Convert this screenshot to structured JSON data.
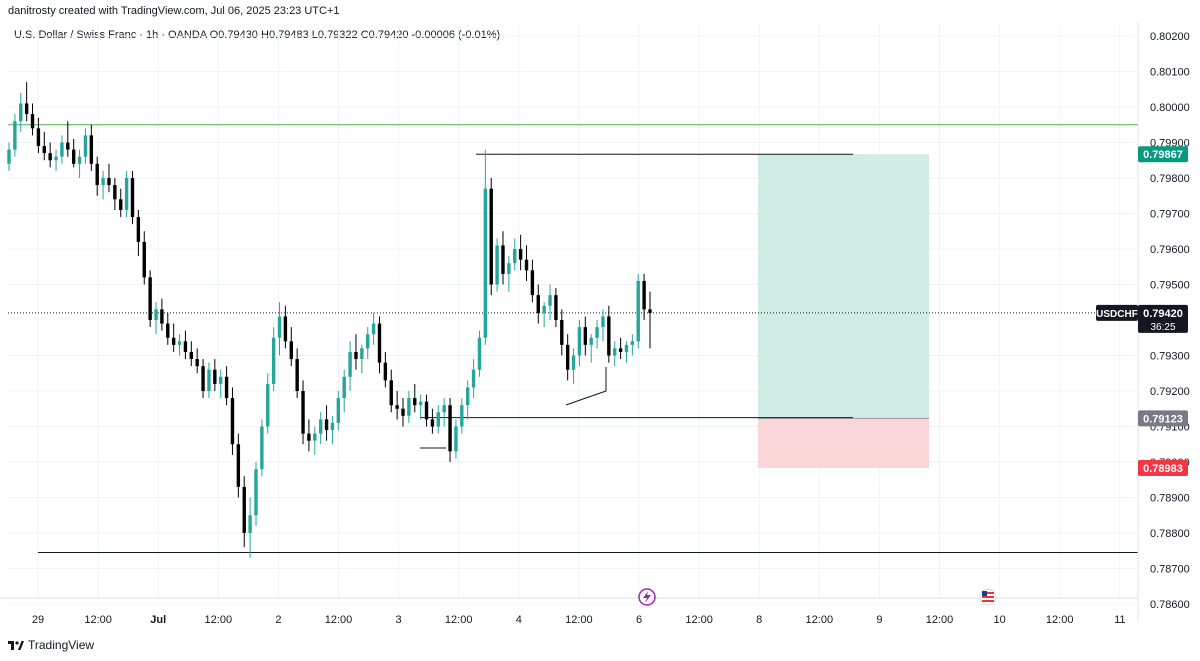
{
  "header": {
    "caption": "danitrosty created with TradingView.com, Jul 06, 2025 23:23 UTC+1",
    "symbol_name": "U.S. Dollar / Swiss Franc · 1h · OANDA",
    "open": "O0.79430",
    "high": "H0.79483",
    "low": "L0.79322",
    "close": "C0.79420",
    "change": "-0.00006 (-0.01%)"
  },
  "footer": {
    "brand": "TradingView"
  },
  "colors": {
    "up": "#26a69a",
    "down": "#000000",
    "profit_zone": "#cfece5",
    "loss_zone": "#fbd6d8",
    "target_label": "#089981",
    "entry_label": "#787b86",
    "stop_label": "#f23645",
    "price_label": "#131722",
    "resistance_line": "#4caf50"
  },
  "chart_data": {
    "type": "candlestick",
    "ylim": [
      0.7856,
      0.8024
    ],
    "y_ticks": [
      "0.80200",
      "0.80100",
      "0.80000",
      "0.79900",
      "0.79800",
      "0.79700",
      "0.79600",
      "0.79500",
      "0.79300",
      "0.79200",
      "0.79100",
      "0.79000",
      "0.78900",
      "0.78800",
      "0.78700",
      "0.78600"
    ],
    "y_tick_values": [
      0.802,
      0.801,
      0.8,
      0.799,
      0.798,
      0.797,
      0.796,
      0.795,
      0.793,
      0.792,
      0.791,
      0.79,
      0.789,
      0.788,
      0.787,
      0.786
    ],
    "x_ticks": [
      "29",
      "12:00",
      "Jul",
      "12:00",
      "2",
      "12:00",
      "3",
      "12:00",
      "4",
      "12:00",
      "6",
      "12:00",
      "8",
      "12:00",
      "9",
      "12:00",
      "10",
      "12:00",
      "11"
    ],
    "x_tick_bold": [
      false,
      false,
      true,
      false,
      false,
      false,
      false,
      false,
      false,
      false,
      false,
      false,
      false,
      false,
      false,
      false,
      false,
      false,
      false
    ],
    "current_price": {
      "symbol": "USDCHF",
      "price": "0.79420",
      "countdown": "36:25",
      "value": 0.7942
    },
    "position": {
      "target_label": "0.79867",
      "target": 0.79867,
      "entry_label": "0.79123",
      "entry": 0.79123,
      "stop_label": "0.78983",
      "stop": 0.78983
    },
    "horizontal_lines": [
      {
        "name": "resistance",
        "value": 0.7995,
        "color": "#4caf50"
      },
      {
        "name": "high-line",
        "value": 0.79867
      },
      {
        "name": "low-line",
        "value": 0.79125
      },
      {
        "name": "support",
        "value": 0.78745
      }
    ],
    "event_icons": [
      "lightning-event-icon",
      "us-flag-icon"
    ],
    "candles": [
      [
        0.7984,
        0.799,
        0.7982,
        0.7988
      ],
      [
        0.7988,
        0.7998,
        0.7986,
        0.7996
      ],
      [
        0.7996,
        0.8004,
        0.7993,
        0.8001
      ],
      [
        0.8001,
        0.8007,
        0.7996,
        0.7998
      ],
      [
        0.7998,
        0.8001,
        0.7992,
        0.7994
      ],
      [
        0.7994,
        0.7997,
        0.7987,
        0.7989
      ],
      [
        0.7989,
        0.7993,
        0.7985,
        0.7987
      ],
      [
        0.7987,
        0.799,
        0.7983,
        0.7985
      ],
      [
        0.7985,
        0.7988,
        0.7982,
        0.7986
      ],
      [
        0.7986,
        0.7992,
        0.7984,
        0.799
      ],
      [
        0.799,
        0.7996,
        0.7986,
        0.7988
      ],
      [
        0.7988,
        0.7991,
        0.7983,
        0.7984
      ],
      [
        0.7984,
        0.7988,
        0.798,
        0.7986
      ],
      [
        0.7986,
        0.7994,
        0.7984,
        0.7992
      ],
      [
        0.7992,
        0.7995,
        0.7982,
        0.7984
      ],
      [
        0.7984,
        0.7986,
        0.7975,
        0.7978
      ],
      [
        0.7978,
        0.7982,
        0.7974,
        0.798
      ],
      [
        0.798,
        0.7984,
        0.7976,
        0.7978
      ],
      [
        0.7978,
        0.798,
        0.7971,
        0.7974
      ],
      [
        0.7974,
        0.7977,
        0.7969,
        0.7971
      ],
      [
        0.7971,
        0.7982,
        0.7969,
        0.798
      ],
      [
        0.798,
        0.7982,
        0.7967,
        0.7969
      ],
      [
        0.7969,
        0.7971,
        0.7958,
        0.7962
      ],
      [
        0.7962,
        0.7965,
        0.795,
        0.7952
      ],
      [
        0.7952,
        0.7954,
        0.7938,
        0.794
      ],
      [
        0.794,
        0.7945,
        0.7936,
        0.7943
      ],
      [
        0.7943,
        0.7946,
        0.7937,
        0.7939
      ],
      [
        0.7939,
        0.7942,
        0.7933,
        0.7935
      ],
      [
        0.7935,
        0.7939,
        0.7931,
        0.7933
      ],
      [
        0.7933,
        0.7936,
        0.793,
        0.7934
      ],
      [
        0.7934,
        0.7937,
        0.7929,
        0.7931
      ],
      [
        0.7931,
        0.7934,
        0.7927,
        0.7929
      ],
      [
        0.7929,
        0.7932,
        0.7925,
        0.7927
      ],
      [
        0.7927,
        0.7929,
        0.7918,
        0.792
      ],
      [
        0.792,
        0.7928,
        0.7918,
        0.7926
      ],
      [
        0.7926,
        0.7929,
        0.792,
        0.7922
      ],
      [
        0.7922,
        0.7926,
        0.7918,
        0.7924
      ],
      [
        0.7924,
        0.7927,
        0.7916,
        0.7918
      ],
      [
        0.7918,
        0.7921,
        0.7902,
        0.7905
      ],
      [
        0.7905,
        0.7908,
        0.789,
        0.7893
      ],
      [
        0.7893,
        0.7896,
        0.7876,
        0.788
      ],
      [
        0.788,
        0.789,
        0.7873,
        0.7885
      ],
      [
        0.7885,
        0.79,
        0.7882,
        0.7898
      ],
      [
        0.7898,
        0.7912,
        0.7896,
        0.791
      ],
      [
        0.791,
        0.7925,
        0.7908,
        0.7922
      ],
      [
        0.7922,
        0.7938,
        0.792,
        0.7935
      ],
      [
        0.7935,
        0.7945,
        0.793,
        0.7941
      ],
      [
        0.7941,
        0.7944,
        0.7932,
        0.7934
      ],
      [
        0.7934,
        0.7938,
        0.7927,
        0.7929
      ],
      [
        0.7929,
        0.7932,
        0.7918,
        0.792
      ],
      [
        0.792,
        0.7923,
        0.7905,
        0.7908
      ],
      [
        0.7908,
        0.7912,
        0.7903,
        0.7906
      ],
      [
        0.7906,
        0.791,
        0.7902,
        0.7908
      ],
      [
        0.7908,
        0.7914,
        0.7905,
        0.7912
      ],
      [
        0.7912,
        0.7916,
        0.7906,
        0.7909
      ],
      [
        0.7909,
        0.7913,
        0.7905,
        0.7911
      ],
      [
        0.7911,
        0.792,
        0.7909,
        0.7918
      ],
      [
        0.7918,
        0.7926,
        0.7914,
        0.7924
      ],
      [
        0.7924,
        0.7934,
        0.792,
        0.7931
      ],
      [
        0.7931,
        0.7936,
        0.7926,
        0.7929
      ],
      [
        0.7929,
        0.7933,
        0.7925,
        0.7932
      ],
      [
        0.7932,
        0.7938,
        0.7929,
        0.7936
      ],
      [
        0.7936,
        0.7942,
        0.7933,
        0.7939
      ],
      [
        0.7939,
        0.7941,
        0.7925,
        0.7928
      ],
      [
        0.7928,
        0.7931,
        0.7921,
        0.7923
      ],
      [
        0.7923,
        0.7926,
        0.7914,
        0.7916
      ],
      [
        0.7916,
        0.792,
        0.7912,
        0.7915
      ],
      [
        0.7915,
        0.7918,
        0.791,
        0.7913
      ],
      [
        0.7913,
        0.792,
        0.7911,
        0.7918
      ],
      [
        0.7918,
        0.7922,
        0.7914,
        0.7916
      ],
      [
        0.7916,
        0.7919,
        0.7912,
        0.7917
      ],
      [
        0.7917,
        0.7919,
        0.791,
        0.7912
      ],
      [
        0.7912,
        0.7915,
        0.7908,
        0.791
      ],
      [
        0.791,
        0.7916,
        0.7908,
        0.7914
      ],
      [
        0.7914,
        0.7918,
        0.791,
        0.7916
      ],
      [
        0.7916,
        0.7918,
        0.79,
        0.7903
      ],
      [
        0.7903,
        0.7912,
        0.7901,
        0.791
      ],
      [
        0.791,
        0.7918,
        0.7908,
        0.7916
      ],
      [
        0.7916,
        0.7923,
        0.7912,
        0.7921
      ],
      [
        0.7921,
        0.7929,
        0.7918,
        0.7926
      ],
      [
        0.7926,
        0.7937,
        0.7924,
        0.7935
      ],
      [
        0.7935,
        0.7988,
        0.7933,
        0.7977
      ],
      [
        0.7977,
        0.798,
        0.7947,
        0.795
      ],
      [
        0.795,
        0.7963,
        0.7948,
        0.7961
      ],
      [
        0.7961,
        0.7965,
        0.795,
        0.7953
      ],
      [
        0.7953,
        0.7958,
        0.7948,
        0.7956
      ],
      [
        0.7956,
        0.7963,
        0.7954,
        0.796
      ],
      [
        0.796,
        0.7964,
        0.7954,
        0.7957
      ],
      [
        0.7957,
        0.7961,
        0.7951,
        0.7954
      ],
      [
        0.7954,
        0.7957,
        0.7945,
        0.7947
      ],
      [
        0.7947,
        0.795,
        0.7939,
        0.7942
      ],
      [
        0.7942,
        0.7945,
        0.7938,
        0.7944
      ],
      [
        0.7944,
        0.795,
        0.794,
        0.7947
      ],
      [
        0.7947,
        0.7949,
        0.7938,
        0.794
      ],
      [
        0.794,
        0.7943,
        0.793,
        0.7933
      ],
      [
        0.7933,
        0.7936,
        0.7923,
        0.7926
      ],
      [
        0.7926,
        0.7932,
        0.7922,
        0.793
      ],
      [
        0.793,
        0.794,
        0.7927,
        0.7938
      ],
      [
        0.7938,
        0.7941,
        0.793,
        0.7933
      ],
      [
        0.7933,
        0.7936,
        0.7928,
        0.7935
      ],
      [
        0.7935,
        0.794,
        0.7932,
        0.7938
      ],
      [
        0.7938,
        0.7943,
        0.7934,
        0.7941
      ],
      [
        0.7941,
        0.7944,
        0.7928,
        0.793
      ],
      [
        0.793,
        0.7934,
        0.7927,
        0.7932
      ],
      [
        0.7932,
        0.7935,
        0.7929,
        0.7931
      ],
      [
        0.7931,
        0.7934,
        0.7928,
        0.7933
      ],
      [
        0.7933,
        0.7936,
        0.793,
        0.7934
      ],
      [
        0.7934,
        0.7953,
        0.7932,
        0.7951
      ],
      [
        0.7951,
        0.7953,
        0.794,
        0.7943
      ],
      [
        0.7943,
        0.7948,
        0.7932,
        0.7942
      ]
    ]
  }
}
